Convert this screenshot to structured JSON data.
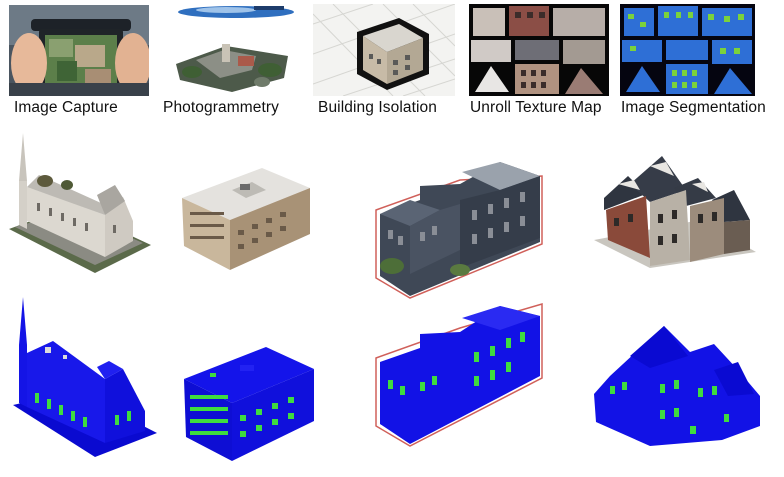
{
  "pipeline": {
    "steps": [
      {
        "label": "Image Capture",
        "image": "drone-controller-photo"
      },
      {
        "label": "Photogrammetry",
        "image": "point-cloud-city-model"
      },
      {
        "label": "Building Isolation",
        "image": "isolated-building-on-map"
      },
      {
        "label": "Unroll Texture Map",
        "image": "unrolled-texture-atlas"
      },
      {
        "label": "Image Segmentation",
        "image": "segmented-texture-atlas"
      }
    ]
  },
  "results": {
    "textured_models": [
      "church-model",
      "office-block-model",
      "gray-row-house-model",
      "victorian-house-model"
    ],
    "segmented_models": [
      "church-segmented",
      "office-block-segmented",
      "gray-row-house-segmented",
      "victorian-house-segmented"
    ],
    "legend_colors": {
      "facade": "#1212e6",
      "window": "#3fdc3f",
      "outline": "#d0605a"
    }
  }
}
